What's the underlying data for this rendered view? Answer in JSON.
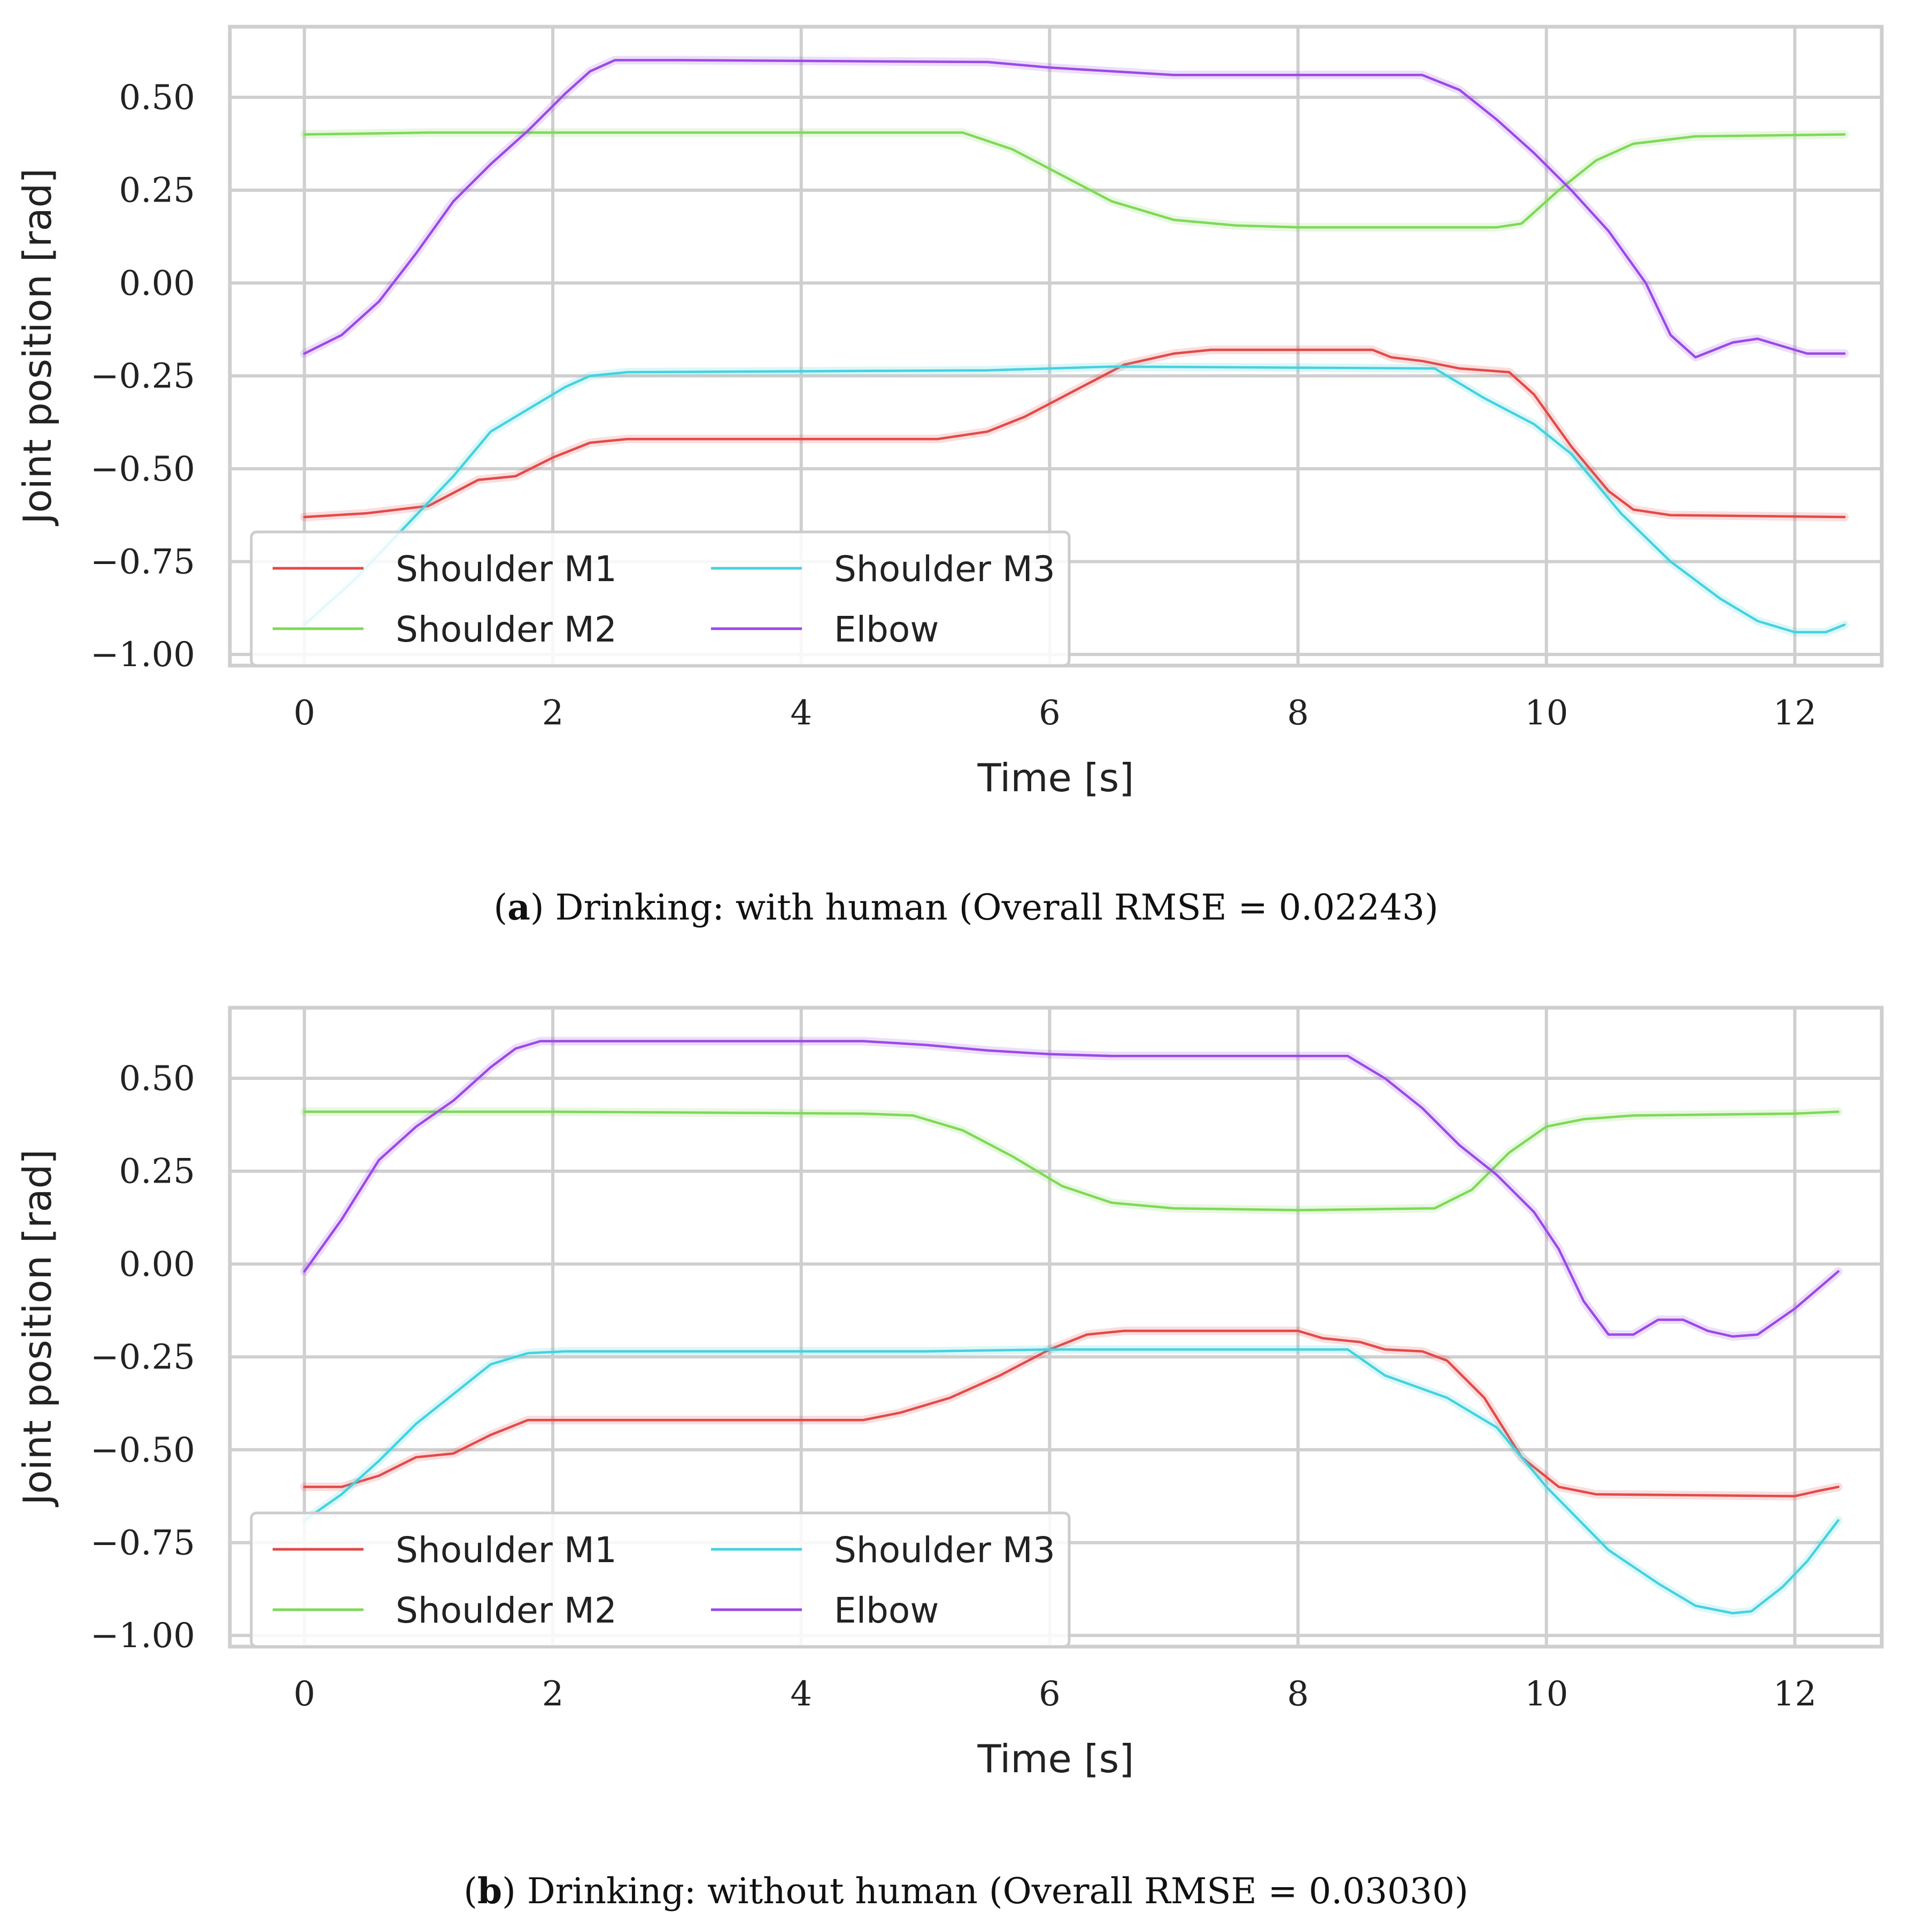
{
  "chart_data": [
    {
      "type": "line",
      "panel": "a",
      "caption_letter": "a",
      "caption_text": "Drinking: with human (Overall RMSE = 0.02243)",
      "xlabel": "Time [s]",
      "ylabel": "Joint position [rad]",
      "xlim": [
        -0.6,
        12.7
      ],
      "ylim": [
        -1.03,
        0.69
      ],
      "x_ticks": [
        0,
        2,
        4,
        6,
        8,
        10,
        12
      ],
      "x_tick_labels": [
        "0",
        "2",
        "4",
        "6",
        "8",
        "10",
        "12"
      ],
      "y_ticks": [
        0.5,
        0.25,
        0.0,
        -0.25,
        -0.5,
        -0.75,
        -1.0
      ],
      "y_tick_labels": [
        "0.50",
        "0.25",
        "0.00",
        "−0.25",
        "−0.50",
        "−0.75",
        "−1.00"
      ],
      "grid": true,
      "legend_position": "lower-left",
      "series": [
        {
          "name": "Shoulder M1",
          "color": "#e24a4a",
          "points": [
            [
              0,
              -0.63
            ],
            [
              0.5,
              -0.62
            ],
            [
              1.0,
              -0.6
            ],
            [
              1.4,
              -0.53
            ],
            [
              1.7,
              -0.52
            ],
            [
              2.0,
              -0.47
            ],
            [
              2.3,
              -0.43
            ],
            [
              2.6,
              -0.42
            ],
            [
              5.1,
              -0.42
            ],
            [
              5.5,
              -0.4
            ],
            [
              5.8,
              -0.36
            ],
            [
              6.2,
              -0.29
            ],
            [
              6.6,
              -0.22
            ],
            [
              7.0,
              -0.19
            ],
            [
              7.3,
              -0.18
            ],
            [
              8.6,
              -0.18
            ],
            [
              8.75,
              -0.2
            ],
            [
              9.0,
              -0.21
            ],
            [
              9.3,
              -0.23
            ],
            [
              9.7,
              -0.24
            ],
            [
              9.9,
              -0.3
            ],
            [
              10.2,
              -0.44
            ],
            [
              10.5,
              -0.56
            ],
            [
              10.7,
              -0.61
            ],
            [
              11.0,
              -0.625
            ],
            [
              12.4,
              -0.63
            ]
          ]
        },
        {
          "name": "Shoulder M2",
          "color": "#7ed957",
          "points": [
            [
              0,
              0.4
            ],
            [
              1.0,
              0.405
            ],
            [
              2.5,
              0.405
            ],
            [
              5.3,
              0.405
            ],
            [
              5.7,
              0.36
            ],
            [
              6.1,
              0.29
            ],
            [
              6.5,
              0.22
            ],
            [
              7.0,
              0.17
            ],
            [
              7.5,
              0.155
            ],
            [
              8.0,
              0.15
            ],
            [
              9.6,
              0.15
            ],
            [
              9.8,
              0.16
            ],
            [
              10.1,
              0.25
            ],
            [
              10.4,
              0.33
            ],
            [
              10.7,
              0.375
            ],
            [
              11.2,
              0.395
            ],
            [
              12.4,
              0.4
            ]
          ]
        },
        {
          "name": "Shoulder M3",
          "color": "#45d2de",
          "points": [
            [
              0,
              -0.92
            ],
            [
              0.4,
              -0.8
            ],
            [
              0.8,
              -0.66
            ],
            [
              1.2,
              -0.52
            ],
            [
              1.5,
              -0.4
            ],
            [
              1.8,
              -0.34
            ],
            [
              2.1,
              -0.28
            ],
            [
              2.3,
              -0.25
            ],
            [
              2.6,
              -0.24
            ],
            [
              5.5,
              -0.235
            ],
            [
              6.0,
              -0.23
            ],
            [
              6.5,
              -0.225
            ],
            [
              9.1,
              -0.23
            ],
            [
              9.5,
              -0.31
            ],
            [
              9.9,
              -0.38
            ],
            [
              10.2,
              -0.46
            ],
            [
              10.6,
              -0.62
            ],
            [
              11.0,
              -0.75
            ],
            [
              11.4,
              -0.85
            ],
            [
              11.7,
              -0.91
            ],
            [
              12.0,
              -0.94
            ],
            [
              12.25,
              -0.94
            ],
            [
              12.4,
              -0.92
            ]
          ]
        },
        {
          "name": "Elbow",
          "color": "#9b4ae6",
          "points": [
            [
              0,
              -0.19
            ],
            [
              0.3,
              -0.14
            ],
            [
              0.6,
              -0.05
            ],
            [
              0.9,
              0.08
            ],
            [
              1.2,
              0.22
            ],
            [
              1.5,
              0.32
            ],
            [
              1.8,
              0.41
            ],
            [
              2.1,
              0.51
            ],
            [
              2.3,
              0.57
            ],
            [
              2.5,
              0.6
            ],
            [
              3.0,
              0.6
            ],
            [
              5.5,
              0.595
            ],
            [
              6.0,
              0.58
            ],
            [
              7.0,
              0.56
            ],
            [
              9.0,
              0.56
            ],
            [
              9.3,
              0.52
            ],
            [
              9.6,
              0.44
            ],
            [
              9.9,
              0.35
            ],
            [
              10.2,
              0.25
            ],
            [
              10.5,
              0.14
            ],
            [
              10.8,
              0.0
            ],
            [
              11.0,
              -0.14
            ],
            [
              11.2,
              -0.2
            ],
            [
              11.5,
              -0.16
            ],
            [
              11.7,
              -0.15
            ],
            [
              11.9,
              -0.17
            ],
            [
              12.1,
              -0.19
            ],
            [
              12.4,
              -0.19
            ]
          ]
        }
      ]
    },
    {
      "type": "line",
      "panel": "b",
      "caption_letter": "b",
      "caption_text": "Drinking: without human (Overall RMSE = 0.03030)",
      "xlabel": "Time [s]",
      "ylabel": "Joint position [rad]",
      "xlim": [
        -0.6,
        12.7
      ],
      "ylim": [
        -1.03,
        0.69
      ],
      "x_ticks": [
        0,
        2,
        4,
        6,
        8,
        10,
        12
      ],
      "x_tick_labels": [
        "0",
        "2",
        "4",
        "6",
        "8",
        "10",
        "12"
      ],
      "y_ticks": [
        0.5,
        0.25,
        0.0,
        -0.25,
        -0.5,
        -0.75,
        -1.0
      ],
      "y_tick_labels": [
        "0.50",
        "0.25",
        "0.00",
        "−0.25",
        "−0.50",
        "−0.75",
        "−1.00"
      ],
      "grid": true,
      "legend_position": "lower-left",
      "series": [
        {
          "name": "Shoulder M1",
          "color": "#e24a4a",
          "points": [
            [
              0,
              -0.6
            ],
            [
              0.3,
              -0.6
            ],
            [
              0.6,
              -0.57
            ],
            [
              0.9,
              -0.52
            ],
            [
              1.2,
              -0.51
            ],
            [
              1.5,
              -0.46
            ],
            [
              1.8,
              -0.42
            ],
            [
              2.1,
              -0.42
            ],
            [
              4.5,
              -0.42
            ],
            [
              4.8,
              -0.4
            ],
            [
              5.2,
              -0.36
            ],
            [
              5.6,
              -0.3
            ],
            [
              6.0,
              -0.23
            ],
            [
              6.3,
              -0.19
            ],
            [
              6.6,
              -0.18
            ],
            [
              8.0,
              -0.18
            ],
            [
              8.2,
              -0.2
            ],
            [
              8.5,
              -0.21
            ],
            [
              8.7,
              -0.23
            ],
            [
              9.0,
              -0.235
            ],
            [
              9.2,
              -0.26
            ],
            [
              9.5,
              -0.36
            ],
            [
              9.8,
              -0.52
            ],
            [
              10.1,
              -0.6
            ],
            [
              10.4,
              -0.62
            ],
            [
              12.0,
              -0.625
            ],
            [
              12.2,
              -0.61
            ],
            [
              12.35,
              -0.6
            ]
          ]
        },
        {
          "name": "Shoulder M2",
          "color": "#7ed957",
          "points": [
            [
              0,
              0.41
            ],
            [
              2.0,
              0.41
            ],
            [
              4.5,
              0.405
            ],
            [
              4.9,
              0.4
            ],
            [
              5.3,
              0.36
            ],
            [
              5.7,
              0.29
            ],
            [
              6.1,
              0.21
            ],
            [
              6.5,
              0.165
            ],
            [
              7.0,
              0.15
            ],
            [
              8.0,
              0.145
            ],
            [
              9.1,
              0.15
            ],
            [
              9.4,
              0.2
            ],
            [
              9.7,
              0.3
            ],
            [
              10.0,
              0.37
            ],
            [
              10.3,
              0.39
            ],
            [
              10.7,
              0.4
            ],
            [
              12.0,
              0.405
            ],
            [
              12.35,
              0.41
            ]
          ]
        },
        {
          "name": "Shoulder M3",
          "color": "#45d2de",
          "points": [
            [
              0,
              -0.69
            ],
            [
              0.3,
              -0.62
            ],
            [
              0.6,
              -0.53
            ],
            [
              0.9,
              -0.43
            ],
            [
              1.2,
              -0.35
            ],
            [
              1.5,
              -0.27
            ],
            [
              1.8,
              -0.24
            ],
            [
              2.1,
              -0.235
            ],
            [
              5.0,
              -0.235
            ],
            [
              6.0,
              -0.23
            ],
            [
              8.4,
              -0.23
            ],
            [
              8.7,
              -0.3
            ],
            [
              9.2,
              -0.36
            ],
            [
              9.6,
              -0.44
            ],
            [
              10.0,
              -0.6
            ],
            [
              10.5,
              -0.77
            ],
            [
              10.9,
              -0.86
            ],
            [
              11.2,
              -0.92
            ],
            [
              11.5,
              -0.94
            ],
            [
              11.65,
              -0.935
            ],
            [
              11.9,
              -0.87
            ],
            [
              12.1,
              -0.8
            ],
            [
              12.35,
              -0.69
            ]
          ]
        },
        {
          "name": "Elbow",
          "color": "#9b4ae6",
          "points": [
            [
              0,
              -0.02
            ],
            [
              0.3,
              0.12
            ],
            [
              0.6,
              0.28
            ],
            [
              0.9,
              0.37
            ],
            [
              1.2,
              0.44
            ],
            [
              1.5,
              0.53
            ],
            [
              1.7,
              0.58
            ],
            [
              1.9,
              0.6
            ],
            [
              2.2,
              0.6
            ],
            [
              4.5,
              0.6
            ],
            [
              5.0,
              0.59
            ],
            [
              5.5,
              0.575
            ],
            [
              6.0,
              0.565
            ],
            [
              6.5,
              0.56
            ],
            [
              8.4,
              0.56
            ],
            [
              8.7,
              0.5
            ],
            [
              9.0,
              0.42
            ],
            [
              9.3,
              0.32
            ],
            [
              9.6,
              0.24
            ],
            [
              9.9,
              0.14
            ],
            [
              10.1,
              0.04
            ],
            [
              10.3,
              -0.1
            ],
            [
              10.5,
              -0.19
            ],
            [
              10.7,
              -0.19
            ],
            [
              10.9,
              -0.15
            ],
            [
              11.1,
              -0.15
            ],
            [
              11.3,
              -0.18
            ],
            [
              11.5,
              -0.195
            ],
            [
              11.7,
              -0.19
            ],
            [
              12.0,
              -0.12
            ],
            [
              12.35,
              -0.02
            ]
          ]
        }
      ]
    }
  ]
}
